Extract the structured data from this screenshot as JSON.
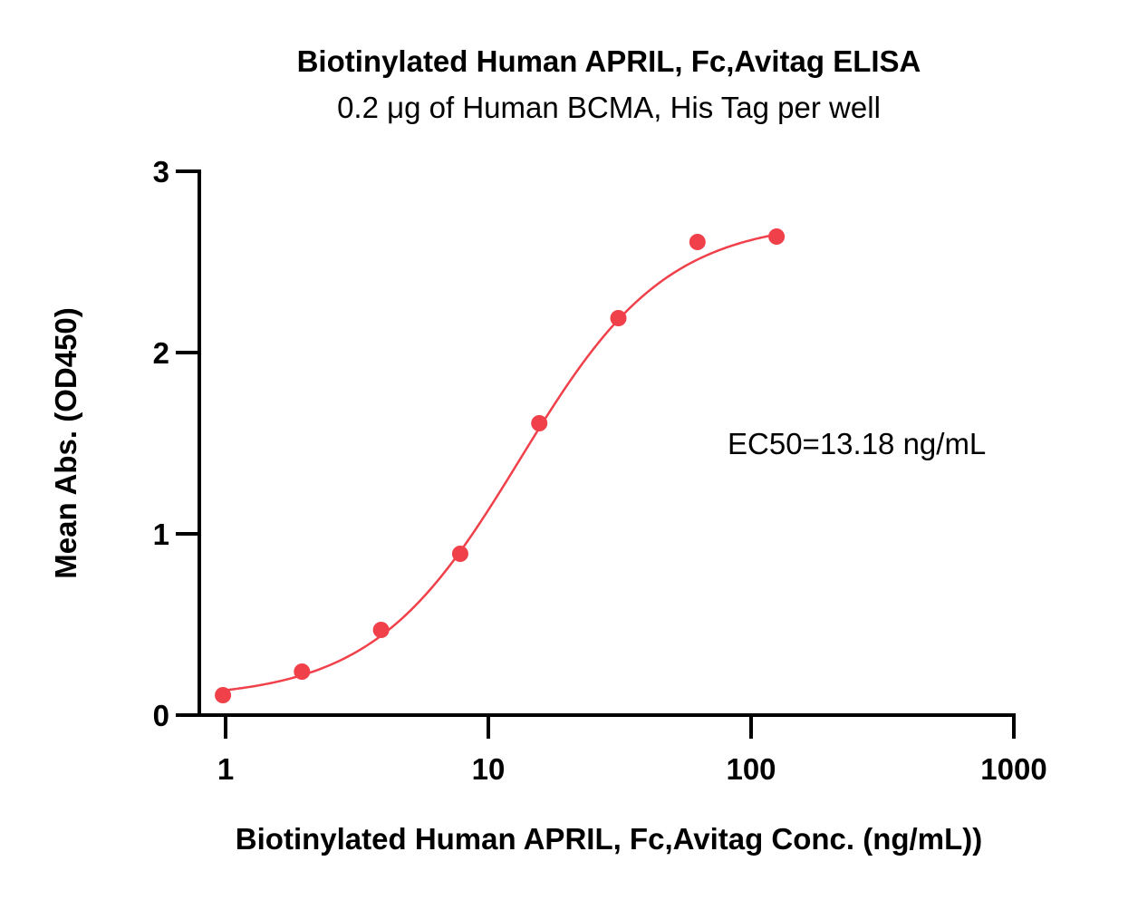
{
  "chart_data": {
    "type": "scatter",
    "title": "Biotinylated Human APRIL, Fc,Avitag ELISA",
    "subtitle": "0.2 μg of Human BCMA, His Tag per well",
    "xlabel": "Biotinylated Human APRIL, Fc,Avitag Conc. (ng/mL))",
    "ylabel": "Mean Abs. (OD450)",
    "x_scale": "log",
    "xlim": [
      0.8,
      1000
    ],
    "ylim": [
      0,
      3
    ],
    "x_ticks": [
      1,
      10,
      100,
      1000
    ],
    "x_tick_labels": [
      "1",
      "10",
      "100",
      "1000"
    ],
    "y_ticks": [
      0,
      1,
      2,
      3
    ],
    "y_tick_labels": [
      "0",
      "1",
      "2",
      "3"
    ],
    "grid": false,
    "series": [
      {
        "x": [
          0.977,
          1.953,
          3.906,
          7.813,
          15.625,
          31.25,
          62.5,
          125
        ],
        "y": [
          0.11,
          0.24,
          0.47,
          0.89,
          1.61,
          2.19,
          2.61,
          2.64
        ],
        "fit": "4PL",
        "fit_params": {
          "bottom": 0.09,
          "top": 2.73,
          "ec50": 13.18,
          "hill": 1.55
        }
      }
    ],
    "annotations": [
      {
        "text": "EC50=13.18 ng/mL"
      }
    ],
    "color": "#F0404A"
  }
}
